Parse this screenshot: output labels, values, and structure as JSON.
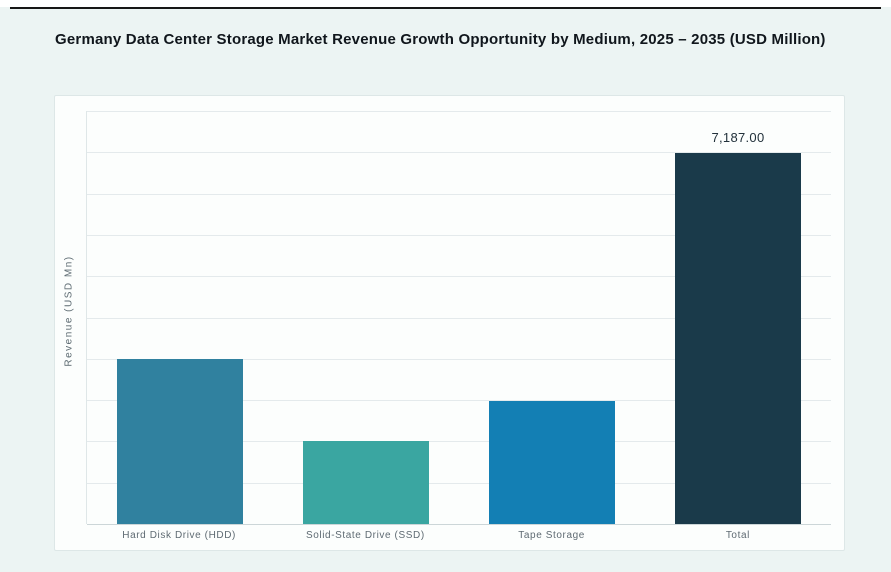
{
  "page": {
    "background_color": "#ecf4f3",
    "top_rule_color": "#161616"
  },
  "panel": {
    "background_color": "#fcfefd",
    "border_color": "#dde7e7"
  },
  "chart_data": {
    "type": "bar",
    "title": "Germany Data Center Storage Market Revenue Growth Opportunity by Medium, 2025 – 2035 (USD Million)",
    "xlabel": "",
    "ylabel": "Revenue (USD Mn)",
    "ylim": [
      0,
      8000
    ],
    "gridline_step": 800,
    "grid": true,
    "legend": false,
    "y_tick_labels_visible": false,
    "categories": [
      "Hard Disk Drive (HDD)",
      "Solid-State Drive (SSD)",
      "Tape Storage",
      "Total"
    ],
    "values": [
      3200,
      1600,
      2387,
      7187
    ],
    "data_labels": [
      "",
      "",
      "",
      "7,187.00"
    ],
    "bar_colors": [
      "#30819f",
      "#3aa6a1",
      "#137fb4",
      "#1a3a4a"
    ],
    "gridline_color": "#e4eaec",
    "axis_line_color": "#ccd6d8",
    "label_text_color": "#5e6a72",
    "value_label_color": "#22313b",
    "title_color": "#10161c"
  }
}
